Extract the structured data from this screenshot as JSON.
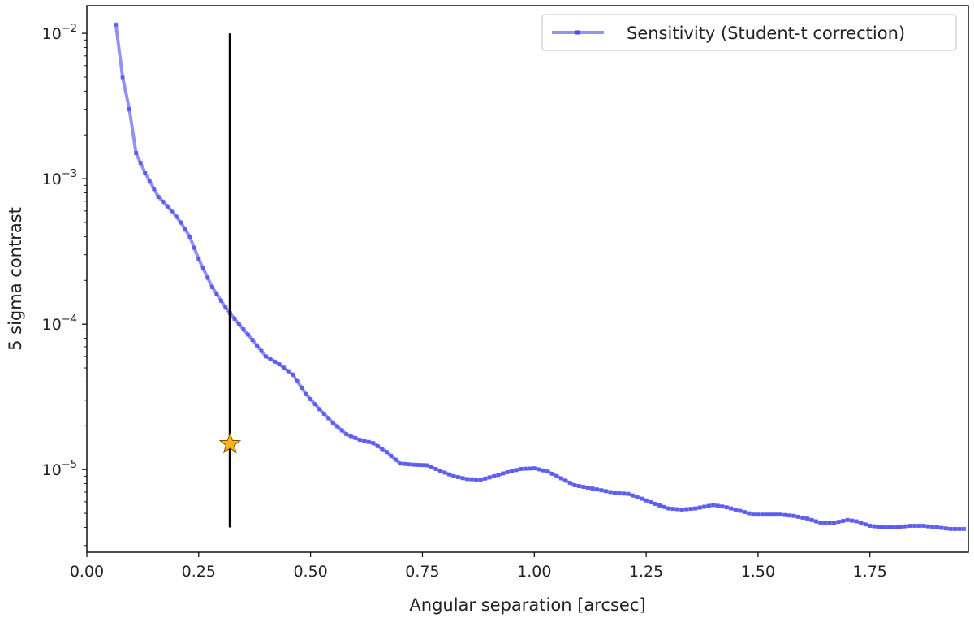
{
  "chart_data": {
    "type": "line",
    "title": "",
    "xlabel": "Angular separation [arcsec]",
    "ylabel": "5 sigma contrast",
    "xlim": [
      0.0,
      1.97
    ],
    "ylim": [
      2.7e-06,
      0.0155
    ],
    "yscale": "log",
    "grid": false,
    "legend_position": "top-right",
    "x_ticks": [
      0.0,
      0.25,
      0.5,
      0.75,
      1.0,
      1.25,
      1.5,
      1.75
    ],
    "x_tick_labels": [
      "0.00",
      "0.25",
      "0.50",
      "0.75",
      "1.00",
      "1.25",
      "1.50",
      "1.75"
    ],
    "y_ticks": [
      {
        "value": 0.01,
        "base": "10",
        "exp": "−2"
      },
      {
        "value": 0.001,
        "base": "10",
        "exp": "−3"
      },
      {
        "value": 0.0001,
        "base": "10",
        "exp": "−4"
      },
      {
        "value": 1e-05,
        "base": "10",
        "exp": "−5"
      }
    ],
    "series": [
      {
        "name": "Sensitivity (Student-t correction)",
        "color": "#4a4aeb",
        "x": [
          0.065,
          0.08,
          0.095,
          0.11,
          0.13,
          0.16,
          0.19,
          0.21,
          0.23,
          0.25,
          0.28,
          0.31,
          0.34,
          0.37,
          0.4,
          0.43,
          0.46,
          0.49,
          0.52,
          0.55,
          0.58,
          0.61,
          0.64,
          0.67,
          0.7,
          0.73,
          0.76,
          0.79,
          0.82,
          0.85,
          0.88,
          0.91,
          0.94,
          0.97,
          1.0,
          1.03,
          1.06,
          1.09,
          1.12,
          1.15,
          1.18,
          1.21,
          1.24,
          1.27,
          1.3,
          1.33,
          1.36,
          1.4,
          1.43,
          1.46,
          1.49,
          1.52,
          1.55,
          1.58,
          1.61,
          1.64,
          1.67,
          1.7,
          1.72,
          1.75,
          1.78,
          1.81,
          1.84,
          1.87,
          1.9,
          1.93,
          1.96
        ],
        "y": [
          0.0115,
          0.005,
          0.003,
          0.0015,
          0.0011,
          0.00075,
          0.0006,
          0.0005,
          0.0004,
          0.00028,
          0.00018,
          0.00013,
          0.0001,
          7.8e-05,
          6e-05,
          5.3e-05,
          4.5e-05,
          3.3e-05,
          2.6e-05,
          2.1e-05,
          1.75e-05,
          1.6e-05,
          1.52e-05,
          1.32e-05,
          1.1e-05,
          1.08e-05,
          1.07e-05,
          9.8e-06,
          9e-06,
          8.6e-06,
          8.5e-06,
          9e-06,
          9.6e-06,
          1.01e-05,
          1.02e-05,
          9.7e-06,
          8.7e-06,
          7.8e-06,
          7.5e-06,
          7.2e-06,
          6.9e-06,
          6.8e-06,
          6.3e-06,
          5.8e-06,
          5.4e-06,
          5.3e-06,
          5.4e-06,
          5.7e-06,
          5.5e-06,
          5.2e-06,
          4.9e-06,
          4.9e-06,
          4.9e-06,
          4.8e-06,
          4.6e-06,
          4.3e-06,
          4.3e-06,
          4.5e-06,
          4.4e-06,
          4.1e-06,
          4e-06,
          4e-06,
          4.1e-06,
          4.1e-06,
          4e-06,
          3.9e-06,
          3.9e-06
        ]
      }
    ],
    "vertical_line": {
      "x": 0.32,
      "y_range": [
        4e-06,
        0.01
      ],
      "color": "#000000"
    },
    "marker_point": {
      "x": 0.32,
      "y": 1.5e-05,
      "color": "#ffb31a",
      "shape": "star"
    }
  }
}
